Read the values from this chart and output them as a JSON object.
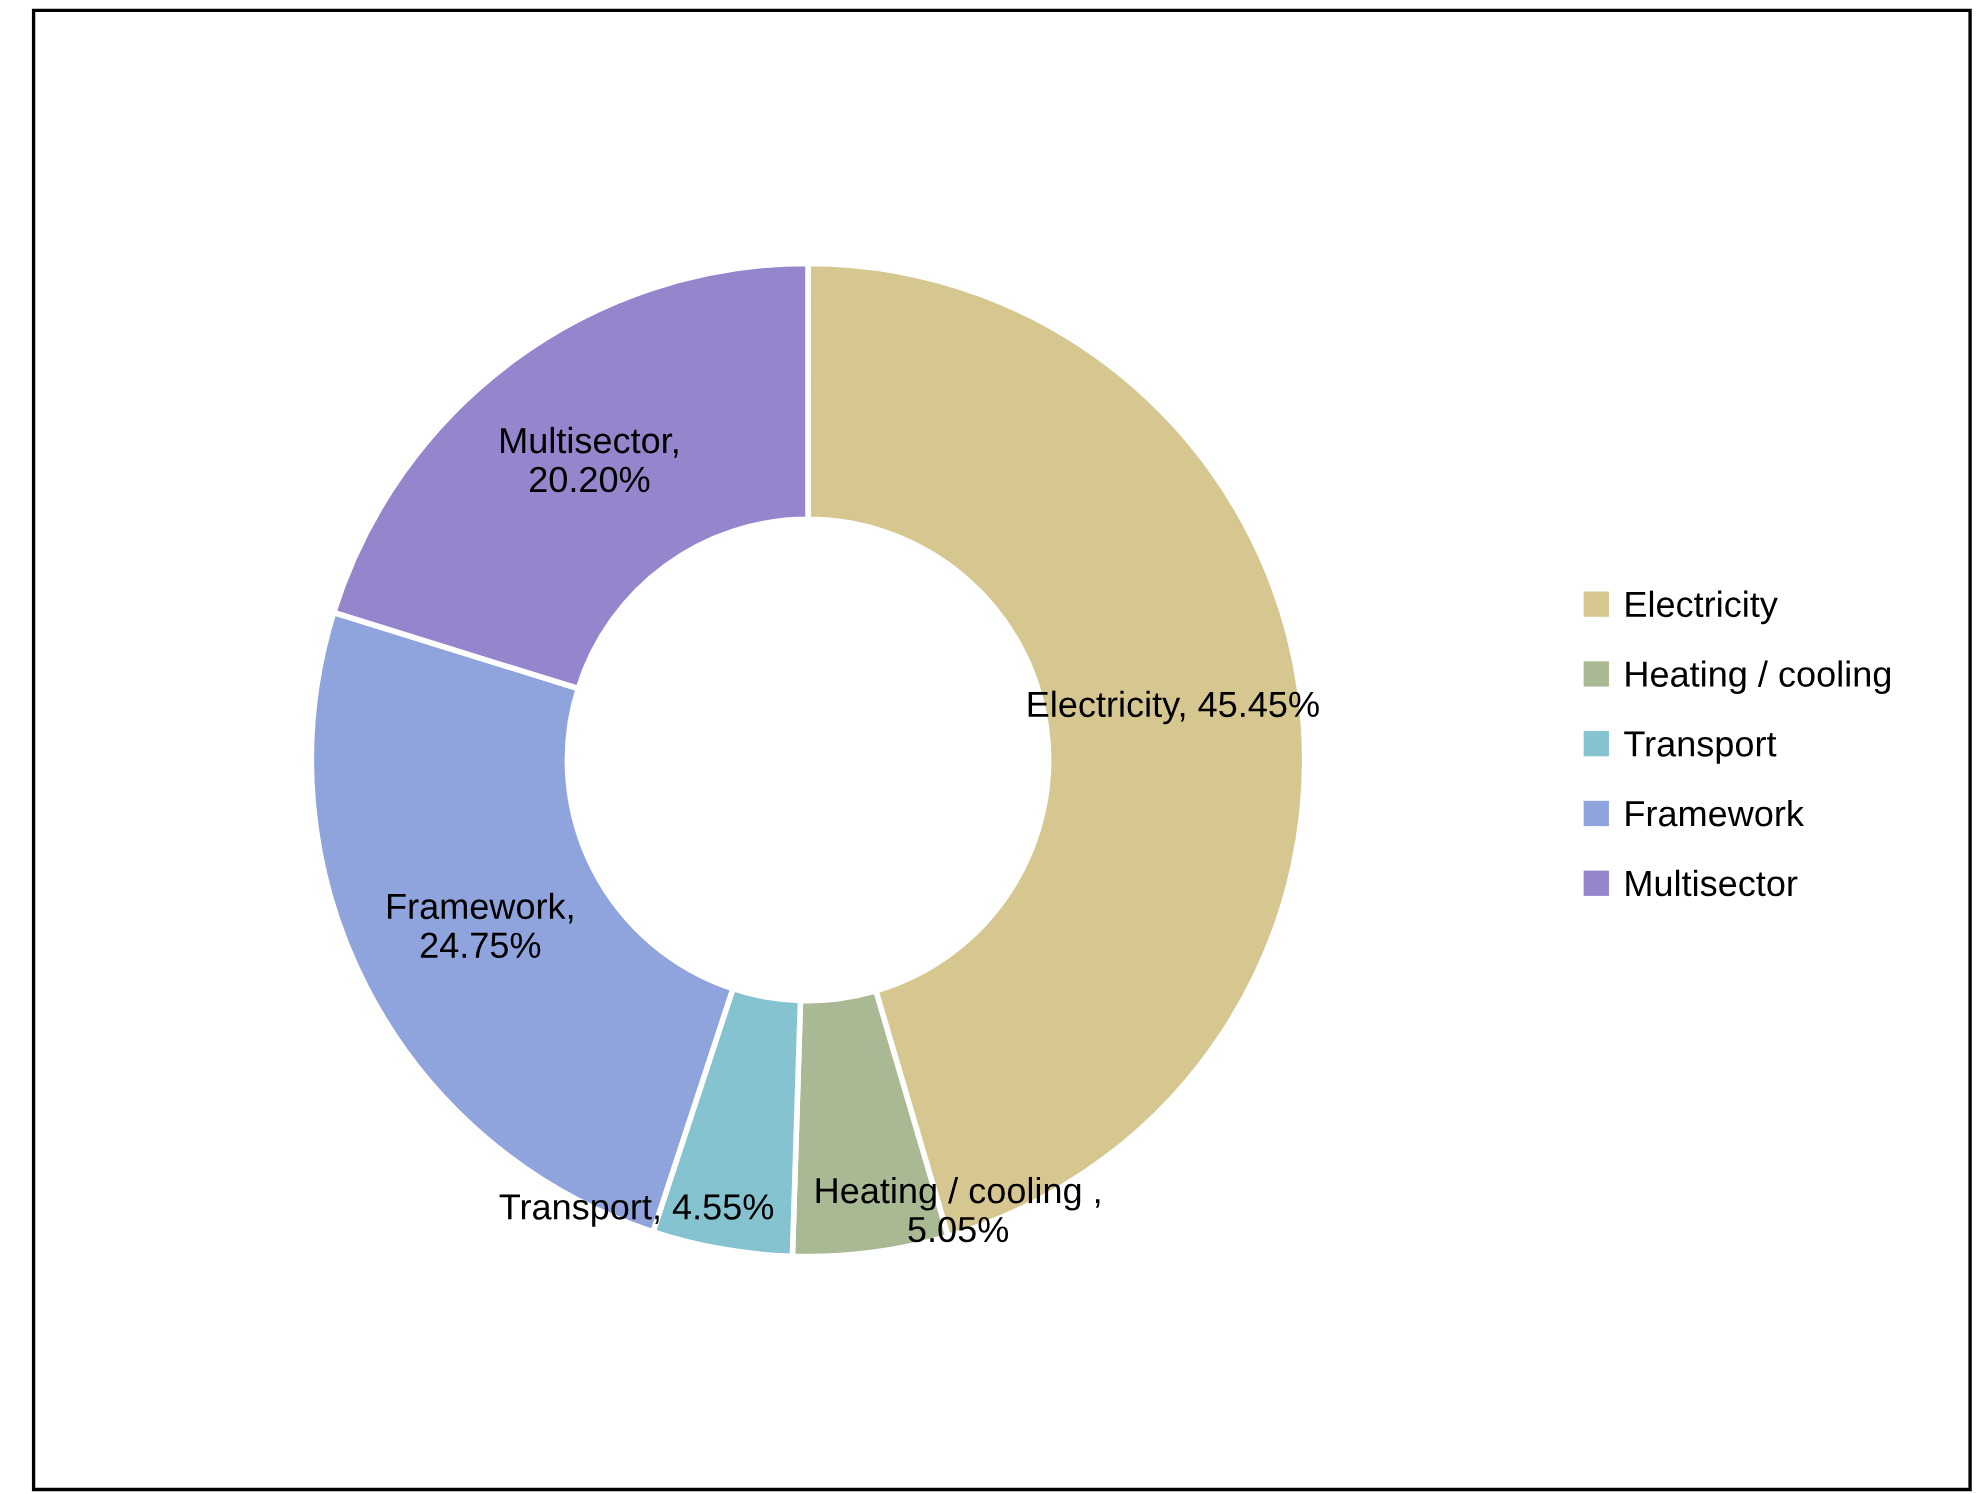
{
  "chart_data": {
    "type": "donut",
    "categories": [
      "Electricity",
      "Heating / cooling",
      "Transport",
      "Framework",
      "Multisector"
    ],
    "values": [
      45.45,
      5.05,
      4.55,
      24.75,
      20.2
    ],
    "colors": [
      "#d6c68f",
      "#a9b993",
      "#86c3d1",
      "#8fa3dc",
      "#9585cc"
    ],
    "value_labels": [
      "Electricity, 45.45%",
      "Heating / cooling ,\n5.05%",
      "Transport, 4.55%",
      "Framework,\n24.75%",
      "Multisector,\n20.20%"
    ],
    "legend": "right"
  }
}
